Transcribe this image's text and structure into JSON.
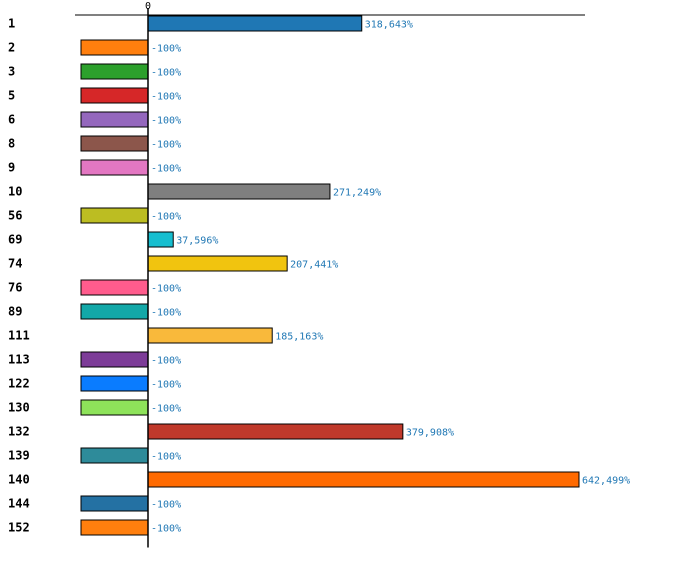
{
  "chart_data": {
    "type": "bar",
    "orientation": "horizontal",
    "title": "",
    "xlabel": "",
    "ylabel": "",
    "zero_tick_label": "0",
    "xlim": [
      -31000,
      650000
    ],
    "categories": [
      "1",
      "2",
      "3",
      "5",
      "6",
      "8",
      "9",
      "10",
      "56",
      "69",
      "74",
      "76",
      "89",
      "111",
      "113",
      "122",
      "130",
      "132",
      "139",
      "140",
      "144",
      "152"
    ],
    "values": [
      318643,
      -100,
      -100,
      -100,
      -100,
      -100,
      -100,
      271249,
      -100,
      37596,
      207441,
      -100,
      -100,
      185163,
      -100,
      -100,
      -100,
      379908,
      -100,
      642499,
      -100,
      -100
    ],
    "value_labels": [
      "318,643%",
      "-100%",
      "-100%",
      "-100%",
      "-100%",
      "-100%",
      "-100%",
      "271,249%",
      "-100%",
      "37,596%",
      "207,441%",
      "-100%",
      "-100%",
      "185,163%",
      "-100%",
      "-100%",
      "-100%",
      "379,908%",
      "-100%",
      "642,499%",
      "-100%",
      "-100%"
    ],
    "colors": [
      "#1f77b4",
      "#ff7f0e",
      "#2ca02c",
      "#d62728",
      "#9467bd",
      "#8c564b",
      "#e377c2",
      "#7f7f7f",
      "#bcbd22",
      "#17becf",
      "#f1c40f",
      "#ff5c8d",
      "#13a8a8",
      "#f9b93b",
      "#7d3c98",
      "#0a7cff",
      "#8ee35a",
      "#c0392b",
      "#2e8b9a",
      "#ff6a00",
      "#2471a3",
      "#ff7f0e"
    ],
    "value_label_color": "#1f77b4",
    "grid": false,
    "legend": "none"
  }
}
